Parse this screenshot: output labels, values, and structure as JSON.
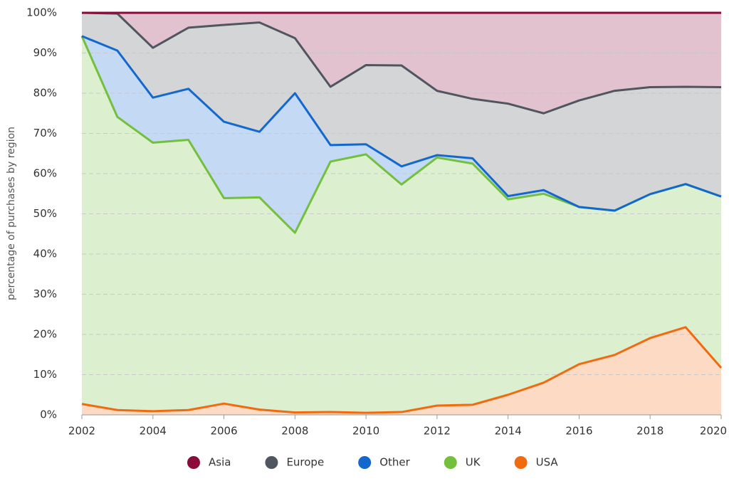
{
  "chart_data": {
    "type": "stacked-area",
    "y_label": "percentage of purchases by region",
    "x": [
      2002,
      2003,
      2004,
      2005,
      2006,
      2007,
      2008,
      2009,
      2010,
      2011,
      2012,
      2013,
      2014,
      2015,
      2016,
      2017,
      2018,
      2019,
      2020
    ],
    "xlim": [
      2002,
      2020
    ],
    "xticks": [
      2002,
      2004,
      2006,
      2008,
      2010,
      2012,
      2014,
      2016,
      2018,
      2020
    ],
    "ylim": [
      0,
      100
    ],
    "yticks": [
      {
        "value": 0,
        "label": "0%"
      },
      {
        "value": 10,
        "label": "10%"
      },
      {
        "value": 20,
        "label": "20%"
      },
      {
        "value": 30,
        "label": "30%"
      },
      {
        "value": 40,
        "label": "40%"
      },
      {
        "value": 50,
        "label": "50%"
      },
      {
        "value": 60,
        "label": "60%"
      },
      {
        "value": 70,
        "label": "70%"
      },
      {
        "value": 80,
        "label": "80%"
      },
      {
        "value": 90,
        "label": "90%"
      },
      {
        "value": 100,
        "label": "100%"
      }
    ],
    "grid": true,
    "legend": "bottom",
    "series": [
      {
        "name": "Asia",
        "color": "#8b0a3a",
        "values": [
          0,
          0.2,
          8.7,
          3.7,
          3.0,
          2.4,
          6.3,
          18.4,
          13.0,
          13.1,
          19.4,
          21.4,
          22.6,
          25.0,
          21.8,
          19.4,
          18.5,
          18.4,
          18.5
        ]
      },
      {
        "name": "Europe",
        "color": "#4f5660",
        "values": [
          5.8,
          9.2,
          12.4,
          15.2,
          24.1,
          27.2,
          13.7,
          14.5,
          19.7,
          25.1,
          16.0,
          14.8,
          23.0,
          19.1,
          26.5,
          29.8,
          26.6,
          24.2,
          27.2
        ]
      },
      {
        "name": "Other",
        "color": "#1368ce",
        "values": [
          0,
          16.5,
          11.2,
          12.7,
          19.0,
          16.3,
          34.7,
          4.1,
          2.5,
          4.5,
          0.6,
          1.3,
          0.8,
          0.9,
          0,
          0,
          0,
          0,
          0
        ]
      },
      {
        "name": "UK",
        "color": "#72c03c",
        "values": [
          91.5,
          72.9,
          66.8,
          67.2,
          51.1,
          52.8,
          44.7,
          62.3,
          64.3,
          56.6,
          61.7,
          60.0,
          48.6,
          47.0,
          39.1,
          35.9,
          35.8,
          35.6,
          42.6
        ]
      },
      {
        "name": "USA",
        "color": "#f26a0f",
        "values": [
          2.7,
          1.2,
          0.9,
          1.2,
          2.8,
          1.3,
          0.6,
          0.7,
          0.5,
          0.7,
          2.3,
          2.5,
          5.0,
          8.0,
          12.6,
          14.9,
          19.1,
          21.8,
          11.7
        ]
      }
    ]
  }
}
